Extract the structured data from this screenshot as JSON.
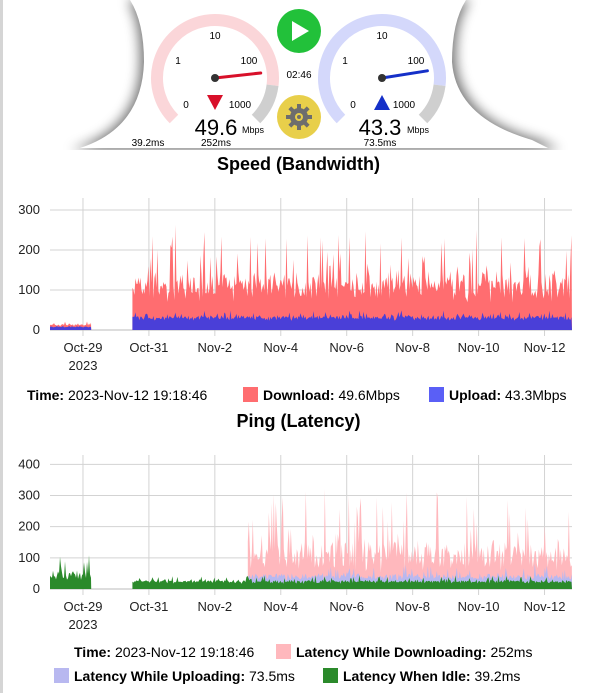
{
  "header": {
    "download_gauge": {
      "scale_labels": [
        "0",
        "1",
        "10",
        "100",
        "1000"
      ],
      "value": "49.6",
      "unit": "Mbps",
      "latency_under": "252ms",
      "idle_latency": "39.2ms",
      "needle_fraction": 0.81,
      "color": "#d8102a",
      "arc_color": "#fbd6d9"
    },
    "upload_gauge": {
      "scale_labels": [
        "0",
        "1",
        "10",
        "100",
        "1000"
      ],
      "value": "43.3",
      "unit": "Mbps",
      "latency_under": "73.5ms",
      "needle_fraction": 0.8,
      "color": "#1530c8",
      "arc_color": "#d4d8fb"
    },
    "timer": "02:46",
    "play_icon": "play-icon",
    "settings_icon": "gear-icon",
    "play_color": "#22c13a",
    "settings_color": "#e8cf4a"
  },
  "speed": {
    "title": "Speed (Bandwidth)",
    "legend": {
      "time_label": "Time:",
      "time_value": "2023-Nov-12 19:18:46",
      "download_label": "Download:",
      "download_value": "49.6Mbps",
      "upload_label": "Upload:",
      "upload_value": "43.3Mbps"
    },
    "colors": {
      "download": "#ff6d70",
      "upload": "#4a3fd8"
    }
  },
  "ping": {
    "title": "Ping (Latency)",
    "legend": {
      "time_label": "Time:",
      "time_value": "2023-Nov-12 19:18:46",
      "downloading_label": "Latency While Downloading:",
      "downloading_value": "252ms",
      "uploading_label": "Latency While Uploading:",
      "uploading_value": "73.5ms",
      "idle_label": "Latency When Idle:",
      "idle_value": "39.2ms"
    },
    "colors": {
      "downloading": "#ffb8bd",
      "uploading": "#b8b8f0",
      "idle": "#2b8a2b"
    }
  },
  "chart_data": [
    {
      "type": "area",
      "name_ref": "speed",
      "x_range": [
        "2023-10-28",
        "2023-11-12T20:00"
      ],
      "ylim": [
        0,
        330
      ],
      "y_ticks": [
        0,
        100,
        200,
        300
      ],
      "x_ticks": [
        {
          "date": "2023-10-29",
          "label": "Oct-29",
          "sublabel": "2023"
        },
        {
          "date": "2023-10-31",
          "label": "Oct-31"
        },
        {
          "date": "2023-11-02",
          "label": "Nov-2"
        },
        {
          "date": "2023-11-04",
          "label": "Nov-4"
        },
        {
          "date": "2023-11-06",
          "label": "Nov-6"
        },
        {
          "date": "2023-11-08",
          "label": "Nov-8"
        },
        {
          "date": "2023-11-10",
          "label": "Nov-10"
        },
        {
          "date": "2023-11-12",
          "label": "Nov-12"
        }
      ],
      "grid": true,
      "series": [
        {
          "name": "Download",
          "segments": [
            {
              "start": "2023-10-28T00:00",
              "end": "2023-10-29T06:00",
              "base": 12,
              "peak": 22
            },
            {
              "start": "2023-10-30T12:00",
              "end": "2023-11-12T20:00",
              "base": 90,
              "peak": 260
            }
          ]
        },
        {
          "name": "Upload",
          "segments": [
            {
              "start": "2023-10-28T00:00",
              "end": "2023-10-29T06:00",
              "base": 8,
              "peak": 12
            },
            {
              "start": "2023-10-30T12:00",
              "end": "2023-11-12T20:00",
              "base": 30,
              "peak": 48
            }
          ]
        }
      ]
    },
    {
      "type": "area",
      "name_ref": "ping",
      "x_range": [
        "2023-10-28",
        "2023-11-12T20:00"
      ],
      "ylim": [
        0,
        430
      ],
      "y_ticks": [
        0,
        100,
        200,
        300,
        400
      ],
      "x_ticks": [
        {
          "date": "2023-10-29",
          "label": "Oct-29",
          "sublabel": "2023"
        },
        {
          "date": "2023-10-31",
          "label": "Oct-31"
        },
        {
          "date": "2023-11-02",
          "label": "Nov-2"
        },
        {
          "date": "2023-11-04",
          "label": "Nov-4"
        },
        {
          "date": "2023-11-06",
          "label": "Nov-6"
        },
        {
          "date": "2023-11-08",
          "label": "Nov-8"
        },
        {
          "date": "2023-11-10",
          "label": "Nov-10"
        },
        {
          "date": "2023-11-12",
          "label": "Nov-12"
        }
      ],
      "grid": true,
      "series": [
        {
          "name": "Latency While Downloading",
          "segments": [
            {
              "start": "2023-11-03T00:00",
              "end": "2023-11-12T20:00",
              "base": 70,
              "peak": 330
            }
          ]
        },
        {
          "name": "Latency While Uploading",
          "segments": [
            {
              "start": "2023-11-03T00:00",
              "end": "2023-11-12T20:00",
              "base": 35,
              "peak": 80
            }
          ]
        },
        {
          "name": "Latency When Idle",
          "segments": [
            {
              "start": "2023-10-28T00:00",
              "end": "2023-10-29T06:00",
              "base": 35,
              "peak": 110
            },
            {
              "start": "2023-10-30T12:00",
              "end": "2023-11-12T20:00",
              "base": 22,
              "peak": 45
            }
          ]
        }
      ]
    }
  ]
}
